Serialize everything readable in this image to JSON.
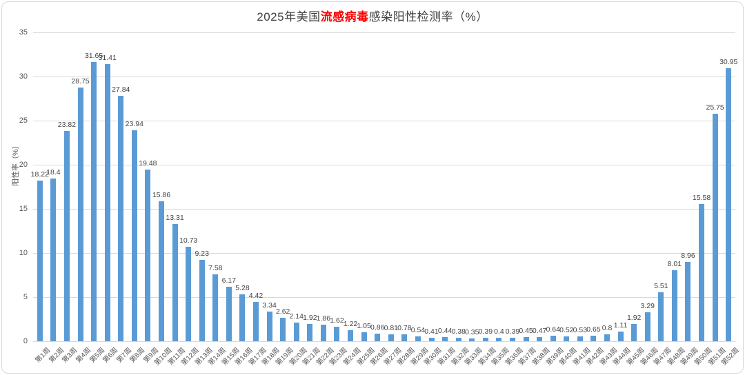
{
  "title": {
    "prefix": "2025年美国",
    "highlight": "流感病毒",
    "suffix": "感染阳性检测率（%）"
  },
  "colors": {
    "bar": "#5b9bd5",
    "title_text": "#404040",
    "title_highlight": "#ff0000",
    "gridline": "#d9d9d9",
    "tick_text": "#595959",
    "data_label_text": "#444444",
    "border": "#d9d9d9",
    "background": "#ffffff"
  },
  "chart_data": {
    "type": "bar",
    "title": "2025年美国流感病毒感染阳性检测率（%）",
    "xlabel": "",
    "ylabel": "阳性率（%）",
    "ylim": [
      0,
      35
    ],
    "ytick_step": 5,
    "ytick_labels": [
      "0",
      "5",
      "10",
      "15",
      "20",
      "25",
      "30",
      "35"
    ],
    "grid": true,
    "legend": "none",
    "categories": [
      "第1周",
      "第2周",
      "第3周",
      "第4周",
      "第5周",
      "第6周",
      "第7周",
      "第8周",
      "第9周",
      "第10周",
      "第11周",
      "第12周",
      "第13周",
      "第14周",
      "第15周",
      "第16周",
      "第17周",
      "第18周",
      "第19周",
      "第20周",
      "第21周",
      "第22周",
      "第23周",
      "第24周",
      "第25周",
      "第26周",
      "第27周",
      "第28周",
      "第29周",
      "第30周",
      "第31周",
      "第32周",
      "第33周",
      "第34周",
      "第35周",
      "第36周",
      "第37周",
      "第38周",
      "第39周",
      "第40周",
      "第41周",
      "第42周",
      "第43周",
      "第44周",
      "第45周",
      "第46周",
      "第47周",
      "第48周",
      "第49周",
      "第50周",
      "第51周",
      "第52周"
    ],
    "values": [
      18.22,
      18.4,
      23.82,
      28.75,
      31.65,
      31.41,
      27.84,
      23.94,
      19.48,
      15.86,
      13.31,
      10.73,
      9.23,
      7.58,
      6.17,
      5.28,
      4.42,
      3.34,
      2.62,
      2.14,
      1.92,
      1.86,
      1.62,
      1.22,
      1.05,
      0.86,
      0.81,
      0.78,
      0.54,
      0.41,
      0.44,
      0.38,
      0.35,
      0.39,
      0.4,
      0.39,
      0.45,
      0.47,
      0.64,
      0.52,
      0.53,
      0.65,
      0.8,
      1.11,
      1.92,
      3.29,
      5.51,
      8.01,
      8.96,
      15.58,
      25.75,
      30.95
    ]
  }
}
